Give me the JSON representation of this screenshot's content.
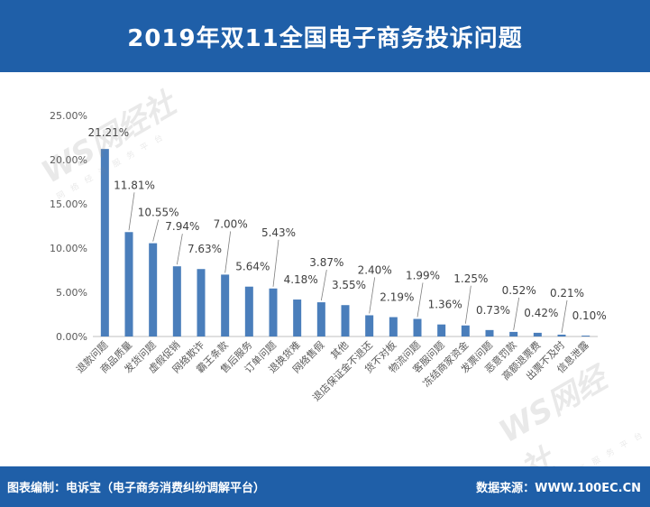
{
  "header": {
    "title": "2019年双11全国电子商务投诉问题"
  },
  "footer": {
    "left": "图表编制：电诉宝（电子商务消费纠纷调解平台）",
    "right": "数据来源：WWW.100EC.CN"
  },
  "watermark": {
    "logo": "WS网经社",
    "sub": "网 络 经 济 服 务 平 台",
    "url": "WWW.100EC.CN"
  },
  "colors": {
    "header_bg": "#1f5fa8",
    "bar": "#4a7ebb",
    "axis": "#bfbfbf"
  },
  "chart_data": {
    "type": "bar",
    "categories": [
      "退款问题",
      "商品质量",
      "发货问题",
      "虚假促销",
      "网络欺诈",
      "霸王条款",
      "售后服务",
      "订单问题",
      "退换货难",
      "网络售假",
      "其他",
      "退店保证金不退还",
      "货不对板",
      "物流问题",
      "客服问题",
      "冻结商家资金",
      "发票问题",
      "恶意罚款",
      "高额退票费",
      "出票不及时",
      "信息泄露"
    ],
    "values": [
      21.21,
      11.81,
      10.55,
      7.94,
      7.63,
      7.0,
      5.64,
      5.43,
      4.18,
      3.87,
      3.55,
      2.4,
      2.19,
      1.99,
      1.36,
      1.25,
      0.73,
      0.52,
      0.42,
      0.21,
      0.1
    ],
    "value_labels": [
      "21.21%",
      "11.81%",
      "10.55%",
      "7.94%",
      "7.63%",
      "7.00%",
      "5.64%",
      "5.43%",
      "4.18%",
      "3.87%",
      "3.55%",
      "2.40%",
      "2.19%",
      "1.99%",
      "1.36%",
      "1.25%",
      "0.73%",
      "0.52%",
      "0.42%",
      "0.21%",
      "0.10%"
    ],
    "yticks": [
      "0.00%",
      "5.00%",
      "10.00%",
      "15.00%",
      "20.00%",
      "25.00%"
    ],
    "ylim": [
      0,
      25
    ],
    "grid": false,
    "legend": "none"
  }
}
